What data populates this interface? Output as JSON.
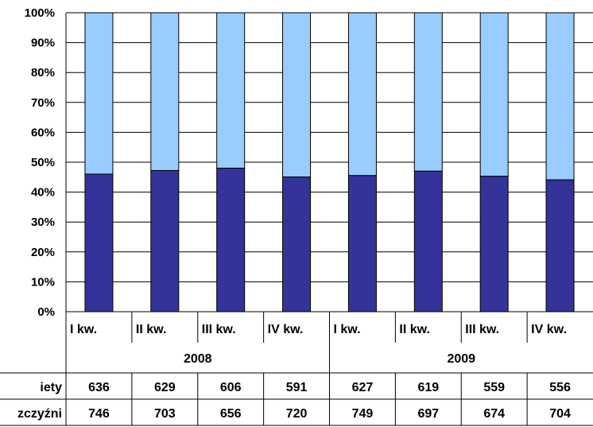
{
  "colors": {
    "women": "#333399",
    "men": "#99CCFF",
    "grid": "#000000"
  },
  "chart_data": {
    "type": "bar",
    "stacked": "percent",
    "y_ticks": [
      "0%",
      "10%",
      "20%",
      "30%",
      "40%",
      "50%",
      "60%",
      "70%",
      "80%",
      "90%",
      "100%"
    ],
    "ylim": [
      0,
      100
    ],
    "grid": true,
    "categories": [
      "I kw.",
      "II kw.",
      "III kw.",
      "IV kw.",
      "I kw.",
      "II kw.",
      "III kw.",
      "IV kw."
    ],
    "groups": [
      {
        "label": "2008",
        "span": 4
      },
      {
        "label": "2009",
        "span": 4
      }
    ],
    "series": [
      {
        "name": "iety",
        "color": "#333399",
        "values": [
          636,
          629,
          606,
          591,
          627,
          619,
          559,
          556
        ]
      },
      {
        "name": "zczyźni",
        "color": "#99CCFF",
        "values": [
          746,
          703,
          656,
          720,
          749,
          697,
          674,
          704
        ]
      }
    ]
  }
}
